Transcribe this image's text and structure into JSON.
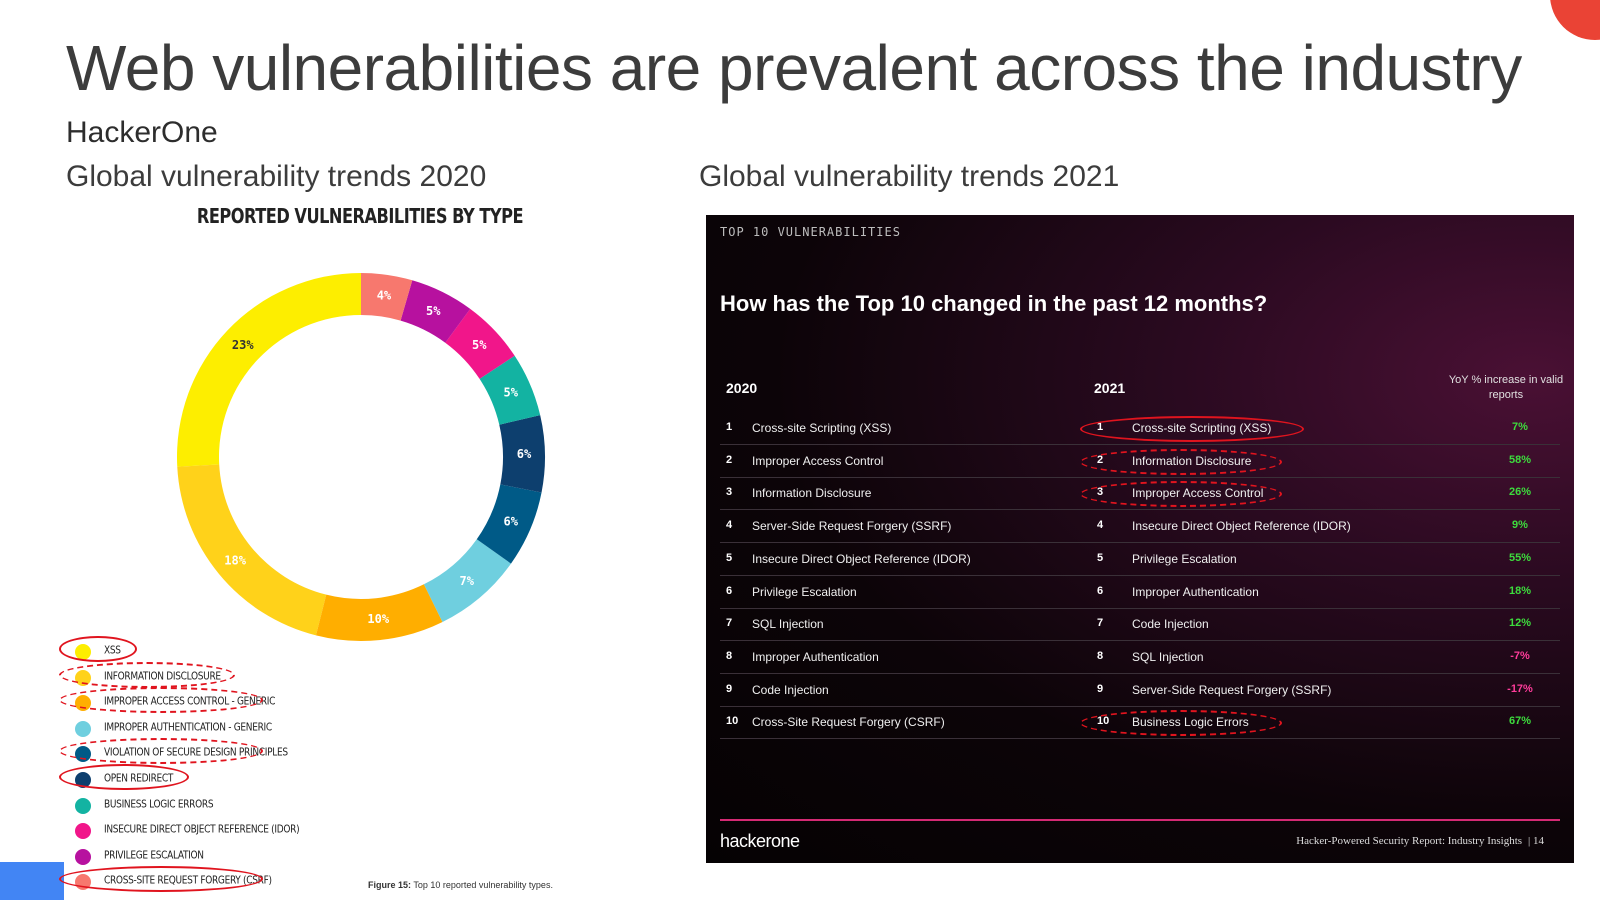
{
  "slide": {
    "title": "Web vulnerabilities are prevalent across the industry",
    "company": "HackerOne",
    "left_subtitle": "Global vulnerability trends 2020",
    "right_subtitle": "Global vulnerability trends 2021"
  },
  "chart_data": {
    "type": "pie",
    "title": "REPORTED VULNERABILITIES BY TYPE",
    "categories": [
      "XSS",
      "INFORMATION DISCLOSURE",
      "IMPROPER ACCESS CONTROL - GENERIC",
      "IMPROPER AUTHENTICATION - GENERIC",
      "VIOLATION OF SECURE DESIGN PRINCIPLES",
      "OPEN REDIRECT",
      "BUSINESS LOGIC ERRORS",
      "INSECURE DIRECT OBJECT REFERENCE (IDOR)",
      "PRIVILEGE ESCALATION",
      "CROSS-SITE REQUEST FORGERY (CSRF)"
    ],
    "values": [
      23,
      18,
      10,
      7,
      6,
      6,
      5,
      5,
      5,
      4
    ],
    "labels": [
      "23%",
      "18%",
      "10%",
      "7%",
      "6%",
      "6%",
      "5%",
      "5%",
      "5%",
      "4%"
    ],
    "colors": [
      "#fdee00",
      "#ffd21a",
      "#ffae00",
      "#6fcfdf",
      "#005a87",
      "#0d3f6e",
      "#13b3a2",
      "#f1168a",
      "#b7119f",
      "#f7786e"
    ],
    "label_colors": [
      "#333333",
      "#ffffff",
      "#ffffff",
      "#ffffff",
      "#ffffff",
      "#ffffff",
      "#ffffff",
      "#ffffff",
      "#ffffff",
      "#ffffff"
    ],
    "donut": true
  },
  "legend": {
    "circled_solid": [
      "XSS",
      "OPEN REDIRECT",
      "CROSS-SITE REQUEST FORGERY (CSRF)"
    ],
    "circled_dashed": [
      "INFORMATION DISCLOSURE",
      "IMPROPER ACCESS CONTROL - GENERIC",
      "VIOLATION OF SECURE DESIGN PRINCIPLES"
    ]
  },
  "caption": {
    "label": "Figure 15:",
    "text": "Top 10 reported vulnerability types."
  },
  "panel": {
    "tag": "TOP 10 VULNERABILITIES",
    "question": "How has the Top 10 changed in the past 12 months?",
    "col_2020": "2020",
    "col_2021": "2021",
    "col_yoy": "YoY % increase in valid reports",
    "rows": [
      {
        "n": "1",
        "y2020": "Cross-site Scripting (XSS)",
        "y2021": "Cross-site Scripting (XSS)",
        "yoy": "7%",
        "positive": true,
        "ring": "solid"
      },
      {
        "n": "2",
        "y2020": "Improper Access Control",
        "y2021": "Information Disclosure",
        "yoy": "58%",
        "positive": true,
        "ring": "dashed"
      },
      {
        "n": "3",
        "y2020": "Information Disclosure",
        "y2021": "Improper Access Control",
        "yoy": "26%",
        "positive": true,
        "ring": "dashed"
      },
      {
        "n": "4",
        "y2020": "Server-Side Request Forgery (SSRF)",
        "y2021": "Insecure Direct Object Reference (IDOR)",
        "yoy": "9%",
        "positive": true,
        "ring": ""
      },
      {
        "n": "5",
        "y2020": "Insecure Direct Object Reference (IDOR)",
        "y2021": "Privilege Escalation",
        "yoy": "55%",
        "positive": true,
        "ring": ""
      },
      {
        "n": "6",
        "y2020": "Privilege Escalation",
        "y2021": "Improper Authentication",
        "yoy": "18%",
        "positive": true,
        "ring": ""
      },
      {
        "n": "7",
        "y2020": "SQL Injection",
        "y2021": "Code Injection",
        "yoy": "12%",
        "positive": true,
        "ring": ""
      },
      {
        "n": "8",
        "y2020": "Improper Authentication",
        "y2021": "SQL Injection",
        "yoy": "-7%",
        "positive": false,
        "ring": ""
      },
      {
        "n": "9",
        "y2020": "Code Injection",
        "y2021": "Server-Side Request Forgery (SSRF)",
        "yoy": "-17%",
        "positive": false,
        "ring": ""
      },
      {
        "n": "10",
        "y2020": "Cross-Site Request Forgery (CSRF)",
        "y2021": "Business Logic Errors",
        "yoy": "67%",
        "positive": true,
        "ring": "dashed"
      }
    ],
    "logo": "hackerone",
    "footer": "Hacker-Powered Security Report: Industry Insights",
    "page": "| 14",
    "positive_color": "#3ddc3d",
    "negative_color": "#ff3c9a",
    "accent": "#d42a74"
  }
}
